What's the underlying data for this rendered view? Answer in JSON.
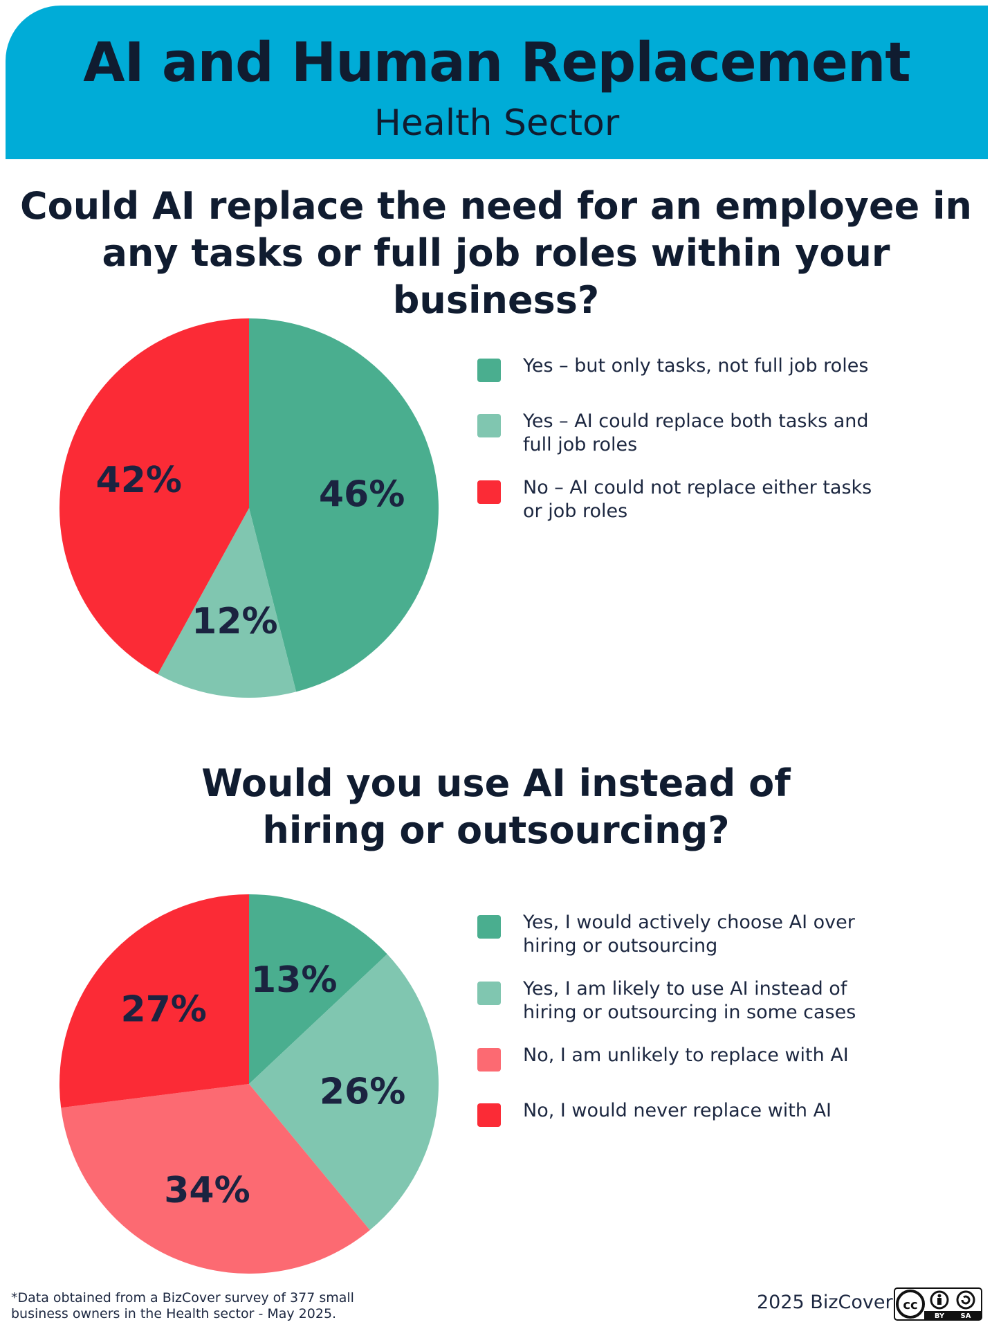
{
  "header": {
    "title": "AI and Human Replacement",
    "subtitle": "Health Sector"
  },
  "questions": {
    "q1_line1": "Could AI replace the need for an employee in",
    "q1_line2": "any tasks or full job roles within your business?",
    "q2_line1": "Would you use AI instead of",
    "q2_line2": "hiring or outsourcing?"
  },
  "chart_data": [
    {
      "type": "pie",
      "title": "Could AI replace the need for an employee in any tasks or full job roles within your business?",
      "slices": [
        {
          "label_line1": "Yes – but only tasks, not full job roles",
          "label_line2": "",
          "value": 46,
          "display": "46%",
          "color": "#4aae8f"
        },
        {
          "label_line1": "Yes – AI could replace both tasks and",
          "label_line2": "full job roles",
          "value": 12,
          "display": "12%",
          "color": "#80c6b0"
        },
        {
          "label_line1": "No – AI could not replace either tasks",
          "label_line2": "or job roles",
          "value": 42,
          "display": "42%",
          "color": "#fb2b36"
        }
      ]
    },
    {
      "type": "pie",
      "title": "Would you use AI instead of hiring or outsourcing?",
      "slices": [
        {
          "label_line1": "Yes, I would actively choose AI over",
          "label_line2": "hiring or outsourcing",
          "value": 13,
          "display": "13%",
          "color": "#4aae8f"
        },
        {
          "label_line1": "Yes, I am likely to use AI instead of",
          "label_line2": "hiring or outsourcing in some cases",
          "value": 26,
          "display": "26%",
          "color": "#80c6b0"
        },
        {
          "label_line1": "No, I am unlikely to replace with AI",
          "label_line2": "",
          "value": 34,
          "display": "34%",
          "color": "#fc6a72"
        },
        {
          "label_line1": "No, I would never replace with AI",
          "label_line2": "",
          "value": 27,
          "display": "27%",
          "color": "#fb2b36"
        }
      ]
    }
  ],
  "footer": {
    "note_line1": "*Data obtained from a BizCover survey of 377 small",
    "note_line2": "business owners in the Health sector - May 2025.",
    "brand": "2025 BizCover",
    "license_by": "BY",
    "license_sa": "SA"
  }
}
